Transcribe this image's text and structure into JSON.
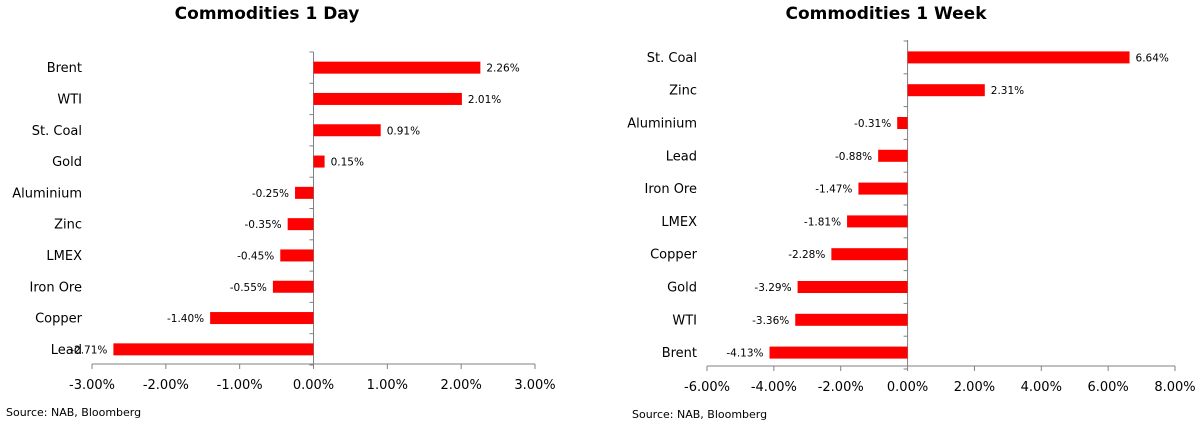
{
  "colors": {
    "bar": "#ff0000",
    "axis": "#808080",
    "text": "#000000"
  },
  "charts": [
    {
      "title": "Commodities 1 Day",
      "source": "Source: NAB, Bloomberg"
    },
    {
      "title": "Commodities 1 Week",
      "source": "Source: NAB, Bloomberg"
    }
  ],
  "chart_data": [
    {
      "type": "bar",
      "orientation": "horizontal",
      "title": "Commodities 1 Day",
      "categories": [
        "Brent",
        "WTI",
        "St. Coal",
        "Gold",
        "Aluminium",
        "Zinc",
        "LMEX",
        "Iron Ore",
        "Copper",
        "Lead"
      ],
      "values": [
        2.26,
        2.01,
        0.91,
        0.15,
        -0.25,
        -0.35,
        -0.45,
        -0.55,
        -1.4,
        -2.71
      ],
      "value_labels": [
        "2.26%",
        "2.01%",
        "0.91%",
        "0.15%",
        "-0.25%",
        "-0.35%",
        "-0.45%",
        "-0.55%",
        "-1.40%",
        "-2.71%"
      ],
      "xlim": [
        -3,
        3
      ],
      "xticks": [
        -3,
        -2,
        -1,
        0,
        1,
        2,
        3
      ],
      "xtick_labels": [
        "-3.00%",
        "-2.00%",
        "-1.00%",
        "0.00%",
        "1.00%",
        "2.00%",
        "3.00%"
      ],
      "grid": false,
      "legend": "none"
    },
    {
      "type": "bar",
      "orientation": "horizontal",
      "title": "Commodities 1 Week",
      "categories": [
        "St. Coal",
        "Zinc",
        "Aluminium",
        "Lead",
        "Iron Ore",
        "LMEX",
        "Copper",
        "Gold",
        "WTI",
        "Brent"
      ],
      "values": [
        6.64,
        2.31,
        -0.31,
        -0.88,
        -1.47,
        -1.81,
        -2.28,
        -3.29,
        -3.36,
        -4.13
      ],
      "value_labels": [
        "6.64%",
        "2.31%",
        "-0.31%",
        "-0.88%",
        "-1.47%",
        "-1.81%",
        "-2.28%",
        "-3.29%",
        "-3.36%",
        "-4.13%"
      ],
      "xlim": [
        -6,
        8
      ],
      "xticks": [
        -6,
        -4,
        -2,
        0,
        2,
        4,
        6,
        8
      ],
      "xtick_labels": [
        "-6.00%",
        "-4.00%",
        "-2.00%",
        "0.00%",
        "2.00%",
        "4.00%",
        "6.00%",
        "8.00%"
      ],
      "grid": false,
      "legend": "none"
    }
  ]
}
